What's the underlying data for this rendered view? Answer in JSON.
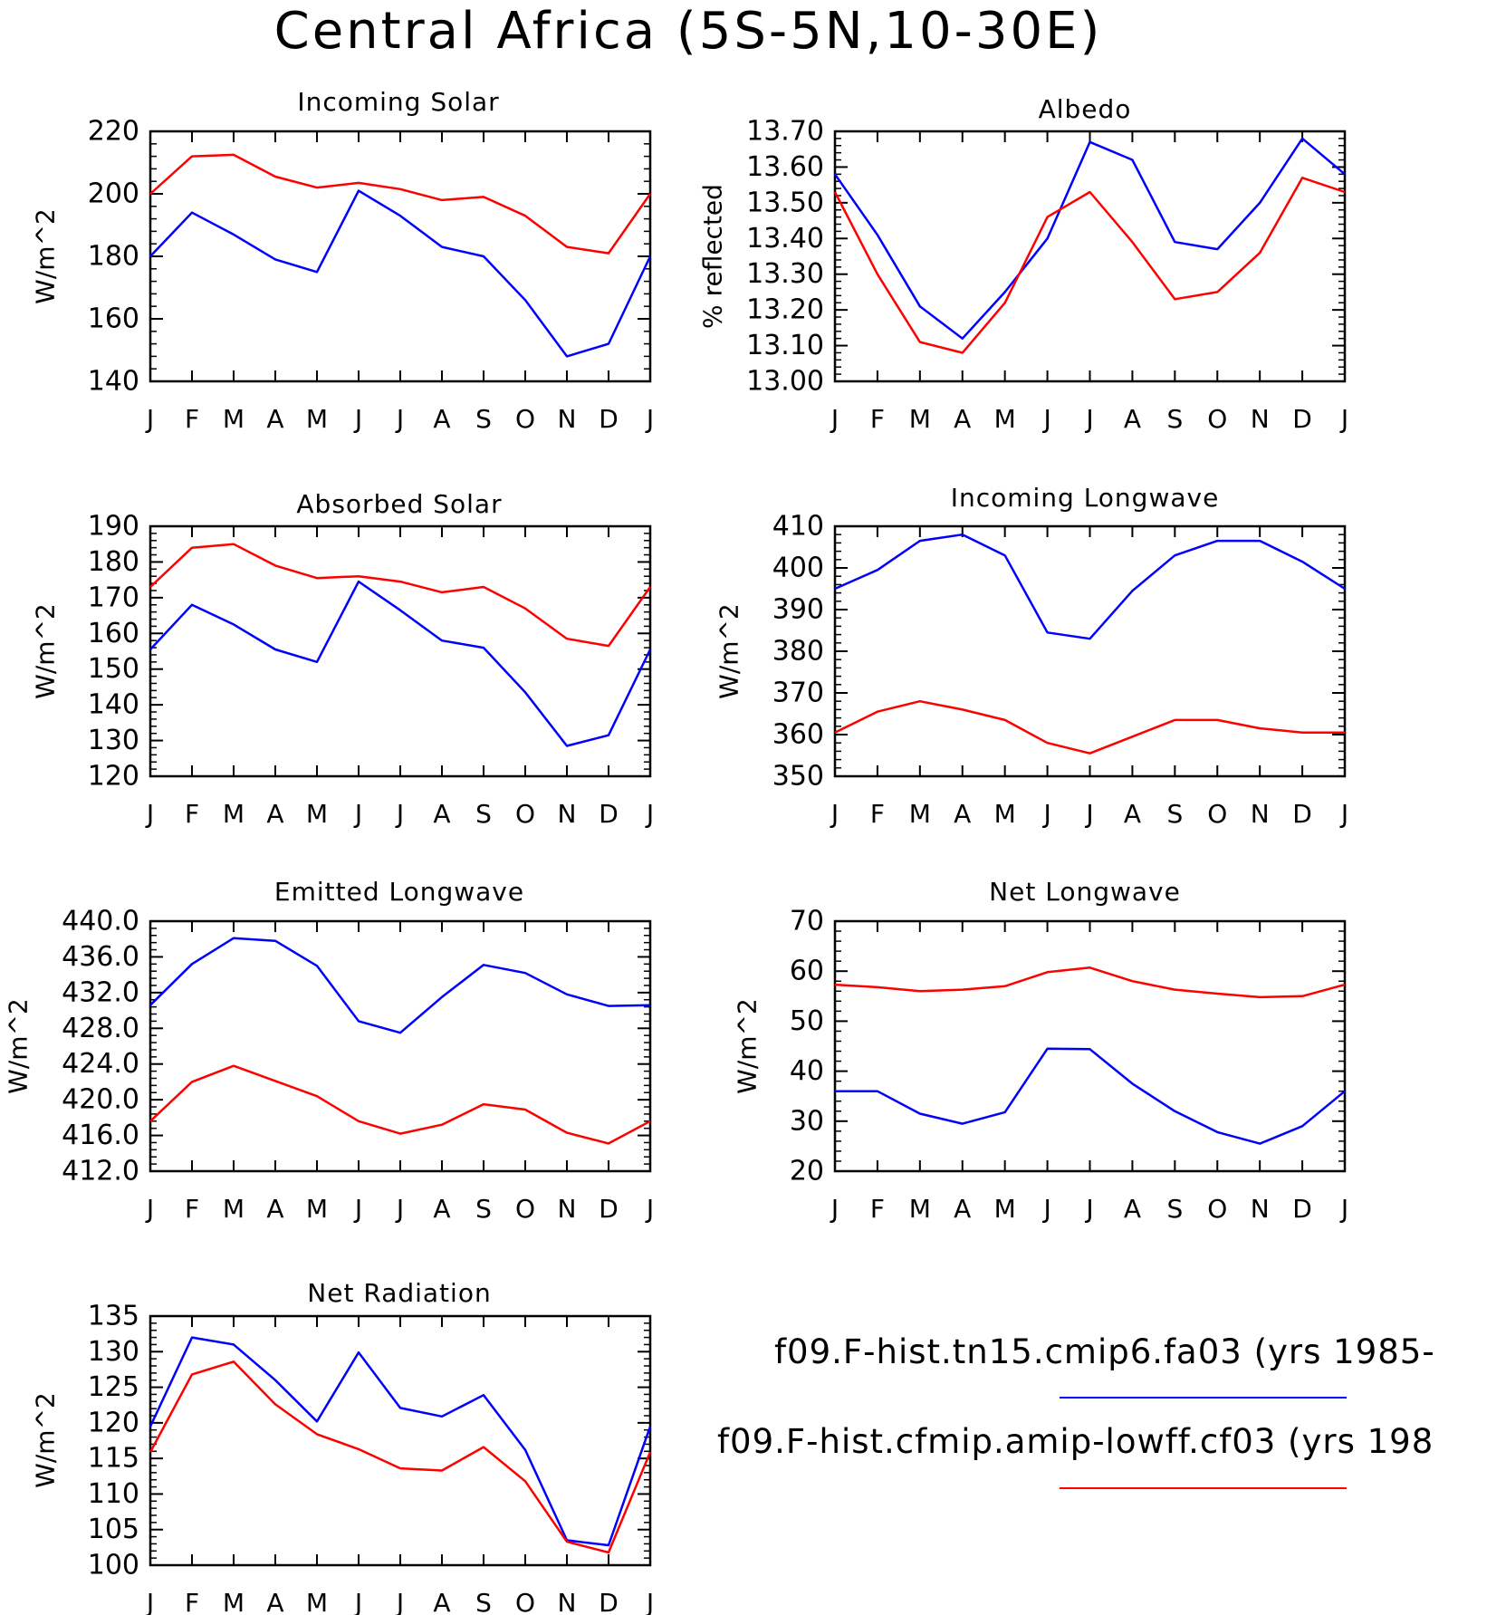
{
  "title": "Central Africa (5S-5N,10-30E)",
  "colors": {
    "series1": "#0000ff",
    "series2": "#ff0000"
  },
  "legend": {
    "items": [
      {
        "label": "f09.F-hist.tn15.cmip6.fa03 (yrs 1985-",
        "color": "#0000ff"
      },
      {
        "label": "f09.F-hist.cfmip.amip-lowff.cf03 (yrs 198",
        "color": "#ff0000"
      }
    ]
  },
  "chart_data": [
    {
      "type": "line",
      "title": "Incoming Solar",
      "ylabel": "W/m^2",
      "categories": [
        "J",
        "F",
        "M",
        "A",
        "M",
        "J",
        "J",
        "A",
        "S",
        "O",
        "N",
        "D",
        "J"
      ],
      "ylim": [
        140,
        220
      ],
      "yticks": [
        "140",
        "160",
        "180",
        "200",
        "220"
      ],
      "series": [
        {
          "values": [
            180,
            194,
            187,
            179,
            175,
            201,
            193,
            183,
            180,
            166,
            148,
            152,
            180
          ]
        },
        {
          "values": [
            200,
            212,
            212.5,
            205.5,
            202,
            203.5,
            201.5,
            198,
            199,
            193,
            183,
            181,
            200
          ]
        }
      ]
    },
    {
      "type": "line",
      "title": "Albedo",
      "ylabel": "% reflected",
      "categories": [
        "J",
        "F",
        "M",
        "A",
        "M",
        "J",
        "J",
        "A",
        "S",
        "O",
        "N",
        "D",
        "J"
      ],
      "ylim": [
        13.0,
        13.7
      ],
      "yticks": [
        "13.00",
        "13.10",
        "13.20",
        "13.30",
        "13.40",
        "13.50",
        "13.60",
        "13.70"
      ],
      "series": [
        {
          "values": [
            13.58,
            13.41,
            13.21,
            13.12,
            13.25,
            13.4,
            13.67,
            13.62,
            13.39,
            13.37,
            13.5,
            13.68,
            13.58
          ]
        },
        {
          "values": [
            13.53,
            13.3,
            13.11,
            13.08,
            13.22,
            13.46,
            13.53,
            13.39,
            13.23,
            13.25,
            13.36,
            13.57,
            13.53
          ]
        }
      ]
    },
    {
      "type": "line",
      "title": "Absorbed Solar",
      "ylabel": "W/m^2",
      "categories": [
        "J",
        "F",
        "M",
        "A",
        "M",
        "J",
        "J",
        "A",
        "S",
        "O",
        "N",
        "D",
        "J"
      ],
      "ylim": [
        120,
        190
      ],
      "yticks": [
        "120",
        "130",
        "140",
        "150",
        "160",
        "170",
        "180",
        "190"
      ],
      "series": [
        {
          "values": [
            155.5,
            168,
            162.5,
            155.5,
            152,
            174.5,
            166.5,
            158,
            156,
            143.5,
            128.5,
            131.5,
            155.5
          ]
        },
        {
          "values": [
            173,
            184,
            185,
            179,
            175.5,
            176,
            174.5,
            171.5,
            173,
            167,
            158.5,
            156.5,
            173
          ]
        }
      ]
    },
    {
      "type": "line",
      "title": "Incoming Longwave",
      "ylabel": "W/m^2",
      "categories": [
        "J",
        "F",
        "M",
        "A",
        "M",
        "J",
        "J",
        "A",
        "S",
        "O",
        "N",
        "D",
        "J"
      ],
      "ylim": [
        350,
        410
      ],
      "yticks": [
        "350",
        "360",
        "370",
        "380",
        "390",
        "400",
        "410"
      ],
      "series": [
        {
          "values": [
            395,
            399.5,
            406.5,
            408,
            403,
            384.5,
            383,
            394.5,
            403,
            406.5,
            406.5,
            401.5,
            395
          ]
        },
        {
          "values": [
            360.5,
            365.5,
            368,
            366,
            363.5,
            358,
            355.5,
            359.5,
            363.5,
            363.5,
            361.5,
            360.5,
            360.5
          ]
        }
      ]
    },
    {
      "type": "line",
      "title": "Emitted Longwave",
      "ylabel": "W/m^2",
      "categories": [
        "J",
        "F",
        "M",
        "A",
        "M",
        "J",
        "J",
        "A",
        "S",
        "O",
        "N",
        "D",
        "J"
      ],
      "ylim": [
        412,
        440
      ],
      "yticks": [
        "412.0",
        "416.0",
        "420.0",
        "424.0",
        "428.0",
        "432.0",
        "436.0",
        "440.0"
      ],
      "series": [
        {
          "values": [
            430.6,
            435.2,
            438.1,
            437.8,
            435.0,
            428.8,
            427.5,
            431.5,
            435.1,
            434.2,
            431.8,
            430.5,
            430.6
          ]
        },
        {
          "values": [
            417.6,
            422.0,
            423.8,
            422.1,
            420.4,
            417.6,
            416.2,
            417.2,
            419.5,
            418.9,
            416.3,
            415.1,
            417.6
          ]
        }
      ]
    },
    {
      "type": "line",
      "title": "Net Longwave",
      "ylabel": "W/m^2",
      "categories": [
        "J",
        "F",
        "M",
        "A",
        "M",
        "J",
        "J",
        "A",
        "S",
        "O",
        "N",
        "D",
        "J"
      ],
      "ylim": [
        20,
        70
      ],
      "yticks": [
        "20",
        "30",
        "40",
        "50",
        "60",
        "70"
      ],
      "series": [
        {
          "values": [
            36,
            36,
            31.5,
            29.5,
            31.8,
            44.5,
            44.4,
            37.5,
            32,
            27.8,
            25.5,
            29,
            36
          ]
        },
        {
          "values": [
            57.3,
            56.8,
            56,
            56.3,
            57,
            59.8,
            60.7,
            58,
            56.3,
            55.5,
            54.8,
            55,
            57.3
          ]
        }
      ]
    },
    {
      "type": "line",
      "title": "Net Radiation",
      "ylabel": "W/m^2",
      "categories": [
        "J",
        "F",
        "M",
        "A",
        "M",
        "J",
        "J",
        "A",
        "S",
        "O",
        "N",
        "D",
        "J"
      ],
      "ylim": [
        100,
        135
      ],
      "yticks": [
        "100",
        "105",
        "110",
        "115",
        "120",
        "125",
        "130",
        "135"
      ],
      "series": [
        {
          "values": [
            119.5,
            132,
            131,
            126,
            120.2,
            129.9,
            122.1,
            120.9,
            123.9,
            116.2,
            103.5,
            102.8,
            119.5
          ]
        },
        {
          "values": [
            115.9,
            126.8,
            128.6,
            122.6,
            118.4,
            116.3,
            113.6,
            113.3,
            116.6,
            111.8,
            103.3,
            101.8,
            115.9
          ]
        }
      ]
    }
  ]
}
